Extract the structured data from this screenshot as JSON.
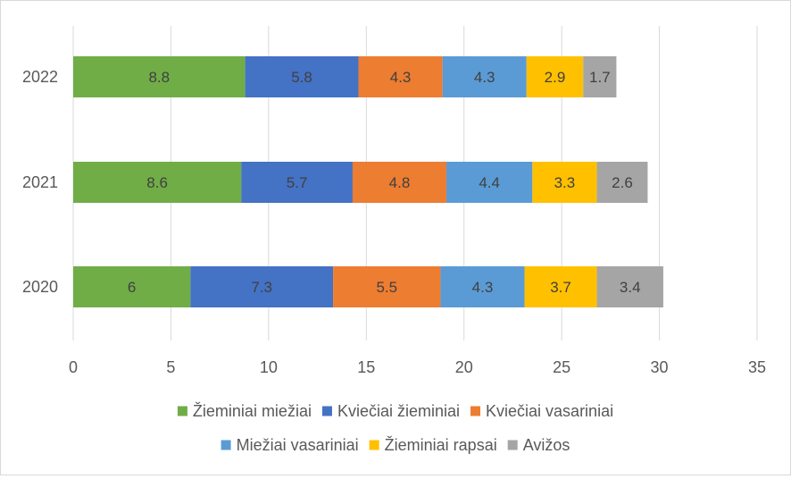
{
  "chart_data": {
    "type": "bar",
    "orientation": "horizontal",
    "stacked": true,
    "title": "",
    "xlabel": "",
    "ylabel": "",
    "xlim": [
      0,
      35
    ],
    "x_ticks": [
      0,
      5,
      10,
      15,
      20,
      25,
      30,
      35
    ],
    "grid": true,
    "legend_position": "bottom",
    "categories": [
      "2022",
      "2021",
      "2020"
    ],
    "series": [
      {
        "name": "Žieminiai miežiai",
        "color": "#70ad47",
        "values": [
          8.8,
          8.6,
          6
        ]
      },
      {
        "name": "Kviečiai žieminiai",
        "color": "#4472c4",
        "values": [
          5.8,
          5.7,
          7.3
        ]
      },
      {
        "name": "Kviečiai vasariniai",
        "color": "#ed7d31",
        "values": [
          4.3,
          4.8,
          5.5
        ]
      },
      {
        "name": "Miežiai vasariniai",
        "color": "#5b9bd5",
        "values": [
          4.3,
          4.4,
          4.3
        ]
      },
      {
        "name": "Žieminiai rapsai",
        "color": "#ffc000",
        "values": [
          2.9,
          3.3,
          3.7
        ]
      },
      {
        "name": "Avižos",
        "color": "#a5a5a5",
        "values": [
          1.7,
          2.6,
          3.4
        ]
      }
    ]
  }
}
